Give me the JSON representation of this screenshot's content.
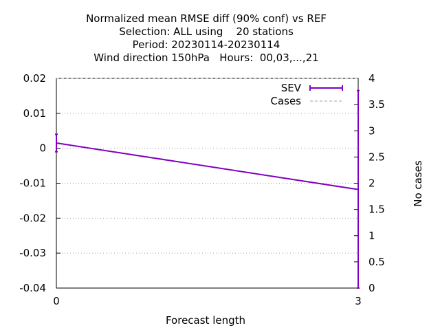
{
  "chart_data": {
    "type": "line",
    "title_lines": [
      "Normalized mean RMSE diff (90% conf) vs REF",
      "Selection: ALL using    20 stations",
      "Period: 20230114-20230114",
      "Wind direction 150hPa   Hours:  00,03,...,21"
    ],
    "xlabel": "Forecast length",
    "ylabel": "",
    "y2label": "No cases",
    "xlim": [
      0,
      3
    ],
    "ylim": [
      -0.04,
      0.02
    ],
    "y2lim": [
      0,
      4
    ],
    "x_ticks": [
      "0",
      "3"
    ],
    "y_ticks": [
      "0.02",
      "0.01",
      "0",
      "-0.01",
      "-0.02",
      "-0.03",
      "-0.04"
    ],
    "y2_ticks": [
      "4",
      "3.5",
      "3",
      "2.5",
      "2",
      "1.5",
      "1",
      "0.5",
      "0"
    ],
    "grid": true,
    "legend_position": "top-right",
    "series": [
      {
        "name": "SEV",
        "color": "#8000c0",
        "x": [
          0,
          3
        ],
        "y": [
          0.0015,
          -0.0118
        ],
        "err_low": [
          -0.001,
          -0.04
        ],
        "err_high": [
          0.004,
          0.0165
        ],
        "axis": "left"
      },
      {
        "name": "Cases",
        "color": "#a0a0a0",
        "dashed": true,
        "x": [
          0,
          3
        ],
        "y": [
          4,
          4
        ],
        "axis": "right"
      }
    ]
  }
}
